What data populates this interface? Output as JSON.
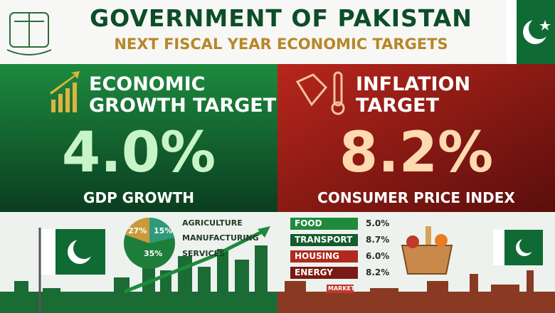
{
  "header": {
    "title": "GOVERNMENT OF PAKISTAN",
    "subtitle": "NEXT FISCAL YEAR ECONOMIC TARGETS"
  },
  "growth": {
    "heading": [
      "ECONOMIC",
      "GROWTH TARGET"
    ],
    "value": "4.0%",
    "label": "GDP GROWTH",
    "pie_labels": [
      "27%",
      "15%",
      "35%"
    ],
    "legend": [
      "AGRICULTURE",
      "MANUFACTURING",
      "SERVICES"
    ]
  },
  "inflation": {
    "heading": [
      "INFLATION",
      "TARGET"
    ],
    "value": "8.2%",
    "label": "CONSUMER PRICE INDEX",
    "items": [
      {
        "name": "FOOD",
        "value": "5.0%",
        "color": "#1f8a3c"
      },
      {
        "name": "TRANSPORT",
        "value": "8.7%",
        "color": "#145c2e"
      },
      {
        "name": "HOUSING",
        "value": "6.0%",
        "color": "#b02a1e"
      },
      {
        "name": "ENERGY",
        "value": "8.2%",
        "color": "#7a1a14"
      }
    ]
  },
  "market_sign": "MARKET"
}
